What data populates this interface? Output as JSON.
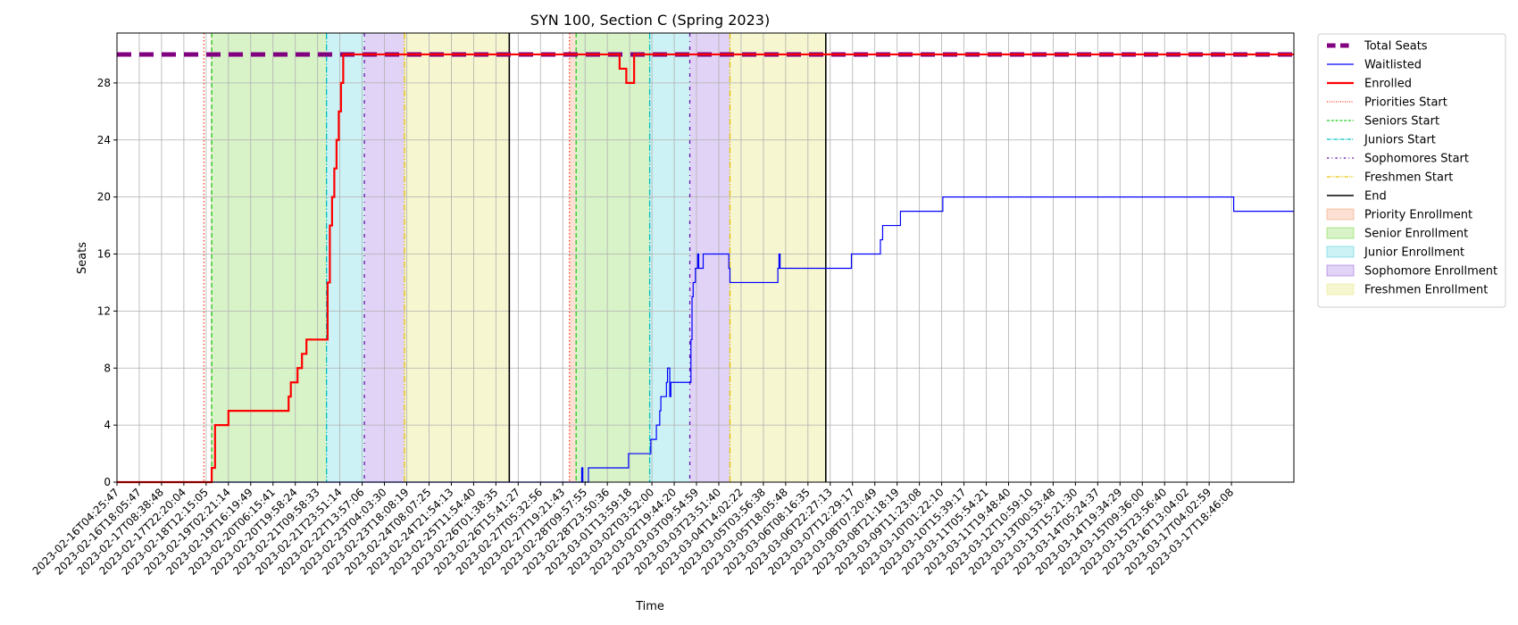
{
  "chart_data": {
    "type": "line",
    "title": "SYN 100, Section C (Spring 2023)",
    "xlabel": "Time",
    "ylabel": "Seats",
    "ylim": [
      0,
      31.5
    ],
    "yticks": [
      0,
      4,
      8,
      12,
      16,
      20,
      24,
      28
    ],
    "grid": true,
    "legend_position": "outside-right-top",
    "x_tick_labels": [
      "2023-02-16T04:25:47",
      "2023-02-16T18:05:47",
      "2023-02-17T08:38:48",
      "2023-02-17T22:20:04",
      "2023-02-18T12:15:05",
      "2023-02-19T02:21:14",
      "2023-02-19T16:19:49",
      "2023-02-20T06:15:41",
      "2023-02-20T19:58:24",
      "2023-02-21T09:58:33",
      "2023-02-21T23:51:14",
      "2023-02-22T13:57:06",
      "2023-02-23T04:03:30",
      "2023-02-23T18:08:19",
      "2023-02-24T08:07:25",
      "2023-02-24T21:54:13",
      "2023-02-25T11:54:40",
      "2023-02-26T01:38:35",
      "2023-02-26T15:41:27",
      "2023-02-27T05:32:56",
      "2023-02-27T19:21:43",
      "2023-02-28T09:57:55",
      "2023-02-28T23:50:36",
      "2023-03-01T13:59:18",
      "2023-03-02T03:52:00",
      "2023-03-02T19:44:20",
      "2023-03-03T09:54:59",
      "2023-03-03T23:51:40",
      "2023-03-04T14:02:22",
      "2023-03-05T03:56:38",
      "2023-03-05T18:05:48",
      "2023-03-06T08:16:35",
      "2023-03-06T22:27:13",
      "2023-03-07T12:29:17",
      "2023-03-08T07:20:49",
      "2023-03-08T21:18:19",
      "2023-03-09T11:23:08",
      "2023-03-10T01:22:10",
      "2023-03-10T15:39:17",
      "2023-03-11T05:54:21",
      "2023-03-11T19:48:40",
      "2023-03-12T10:59:10",
      "2023-03-13T00:53:48",
      "2023-03-13T15:21:30",
      "2023-03-14T05:24:37",
      "2023-03-14T19:34:29",
      "2023-03-15T09:36:00",
      "2023-03-15T23:56:40",
      "2023-03-16T13:04:02",
      "2023-03-17T04:02:59",
      "2023-03-17T18:46:08"
    ],
    "x_domain": [
      0,
      52.8
    ],
    "bands": [
      {
        "name": "Priority Enrollment",
        "color": "#f4a582",
        "alpha": 0.35,
        "ranges": [
          [
            4.2,
            4.25
          ],
          [
            20.3,
            20.6
          ]
        ]
      },
      {
        "name": "Senior Enrollment",
        "color": "#7fd84a",
        "alpha": 0.3,
        "ranges": [
          [
            4.25,
            9.4
          ],
          [
            20.6,
            23.9
          ]
        ]
      },
      {
        "name": "Junior Enrollment",
        "color": "#5bd3de",
        "alpha": 0.3,
        "ranges": [
          [
            9.4,
            11.1
          ],
          [
            23.9,
            25.7
          ]
        ]
      },
      {
        "name": "Sophomore Enrollment",
        "color": "#9b6cdf",
        "alpha": 0.3,
        "ranges": [
          [
            11.1,
            12.9
          ],
          [
            25.7,
            27.5
          ]
        ]
      },
      {
        "name": "Freshmen Enrollment",
        "color": "#e8e88a",
        "alpha": 0.4,
        "ranges": [
          [
            12.9,
            17.6
          ],
          [
            27.5,
            31.8
          ]
        ]
      }
    ],
    "vlines": [
      {
        "name": "Priorities Start",
        "color": "#ff3b1f",
        "dash": "1.5,2.5",
        "width": 1.3,
        "x": [
          3.9,
          20.3
        ]
      },
      {
        "name": "Seniors Start",
        "color": "#22cc22",
        "dash": "5,3",
        "width": 1.3,
        "x": [
          4.25,
          20.6
        ]
      },
      {
        "name": "Juniors Start",
        "color": "#00bfc4",
        "dash": "7,2,1.5,2",
        "width": 1.3,
        "x": [
          9.4,
          23.9
        ]
      },
      {
        "name": "Sophomores Start",
        "color": "#6a0dad",
        "dash": "4,5,1,5",
        "width": 1.3,
        "x": [
          11.1,
          25.7
        ]
      },
      {
        "name": "Freshmen Start",
        "color": "#e6c200",
        "dash": "7,2,1.5,2,1.5,2",
        "width": 1.3,
        "x": [
          12.9,
          27.5
        ]
      },
      {
        "name": "End",
        "color": "#000000",
        "dash": "",
        "width": 1.6,
        "x": [
          17.6,
          31.8
        ]
      }
    ],
    "series": [
      {
        "name": "Total Seats",
        "color": "#800080",
        "width": 5,
        "dash": "16,9",
        "step": false,
        "points": [
          [
            0,
            30
          ],
          [
            52.8,
            30
          ]
        ]
      },
      {
        "name": "Waitlisted",
        "color": "#0000ff",
        "width": 1.2,
        "dash": "",
        "step": true,
        "points": [
          [
            0,
            0
          ],
          [
            20.8,
            0
          ],
          [
            20.85,
            1
          ],
          [
            20.9,
            0
          ],
          [
            21.1,
            0
          ],
          [
            21.15,
            1
          ],
          [
            22.9,
            1
          ],
          [
            22.95,
            2
          ],
          [
            23.9,
            2
          ],
          [
            23.95,
            3
          ],
          [
            24.15,
            3
          ],
          [
            24.2,
            4
          ],
          [
            24.3,
            4
          ],
          [
            24.35,
            5
          ],
          [
            24.4,
            6
          ],
          [
            24.6,
            6
          ],
          [
            24.65,
            7
          ],
          [
            24.7,
            8
          ],
          [
            24.78,
            8
          ],
          [
            24.8,
            6
          ],
          [
            24.85,
            7
          ],
          [
            25.7,
            7
          ],
          [
            25.75,
            10
          ],
          [
            25.8,
            13
          ],
          [
            25.85,
            14
          ],
          [
            25.95,
            15
          ],
          [
            26.05,
            16
          ],
          [
            26.1,
            15
          ],
          [
            26.3,
            16
          ],
          [
            26.9,
            16
          ],
          [
            27.45,
            15
          ],
          [
            27.5,
            14
          ],
          [
            29.6,
            14
          ],
          [
            29.65,
            15
          ],
          [
            29.7,
            16
          ],
          [
            29.75,
            15
          ],
          [
            32.9,
            15
          ],
          [
            32.95,
            16
          ],
          [
            34.2,
            16
          ],
          [
            34.25,
            17
          ],
          [
            34.35,
            18
          ],
          [
            35.1,
            18
          ],
          [
            35.15,
            19
          ],
          [
            37.0,
            19
          ],
          [
            37.05,
            20
          ],
          [
            50.05,
            20
          ],
          [
            50.1,
            19
          ],
          [
            52.8,
            19
          ]
        ]
      },
      {
        "name": "Enrolled",
        "color": "#ff0000",
        "width": 2.2,
        "dash": "",
        "step": true,
        "points": [
          [
            0,
            0
          ],
          [
            4.2,
            0
          ],
          [
            4.25,
            1
          ],
          [
            4.4,
            4
          ],
          [
            4.95,
            4
          ],
          [
            5.0,
            5
          ],
          [
            7.65,
            5
          ],
          [
            7.7,
            6
          ],
          [
            7.8,
            7
          ],
          [
            8.1,
            8
          ],
          [
            8.3,
            9
          ],
          [
            8.5,
            10
          ],
          [
            9.4,
            10
          ],
          [
            9.45,
            14
          ],
          [
            9.55,
            18
          ],
          [
            9.65,
            20
          ],
          [
            9.75,
            22
          ],
          [
            9.85,
            24
          ],
          [
            9.95,
            26
          ],
          [
            10.05,
            28
          ],
          [
            10.15,
            30
          ],
          [
            22.5,
            30
          ],
          [
            22.55,
            29
          ],
          [
            22.8,
            29
          ],
          [
            22.85,
            28
          ],
          [
            23.15,
            28
          ],
          [
            23.2,
            30
          ],
          [
            52.8,
            30
          ]
        ]
      }
    ]
  }
}
